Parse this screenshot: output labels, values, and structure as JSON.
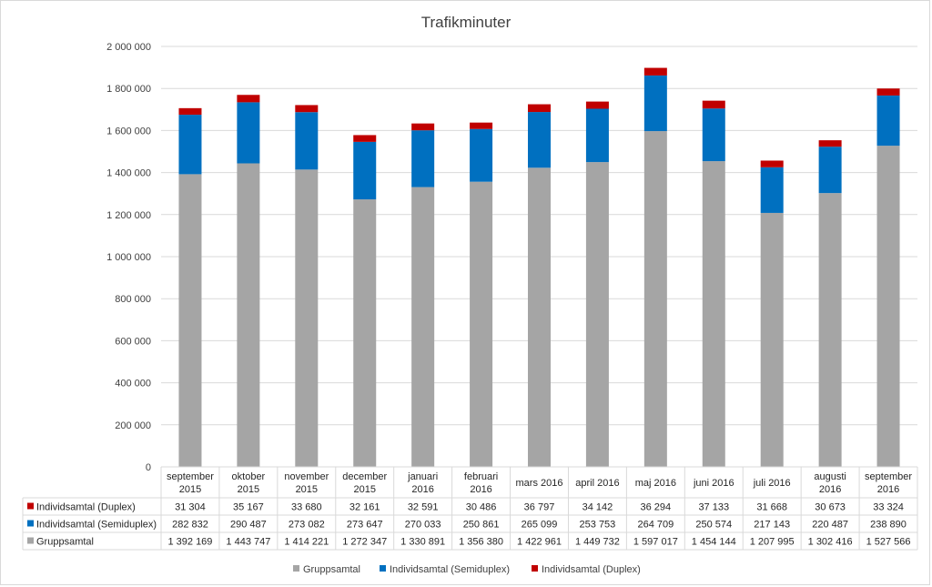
{
  "chart_data": {
    "type": "bar",
    "stacked": true,
    "title": "Trafikminuter",
    "categories": [
      [
        "september",
        "2015"
      ],
      [
        "oktober",
        "2015"
      ],
      [
        "november",
        "2015"
      ],
      [
        "december",
        "2015"
      ],
      [
        "januari",
        "2016"
      ],
      [
        "februari",
        "2016"
      ],
      [
        "mars 2016"
      ],
      [
        "april 2016"
      ],
      [
        "maj 2016"
      ],
      [
        "juni 2016"
      ],
      [
        "juli 2016"
      ],
      [
        "augusti",
        "2016"
      ],
      [
        "september",
        "2016"
      ]
    ],
    "series": [
      {
        "name": "Gruppsamtal",
        "color": "#a5a5a5",
        "values": [
          1392169,
          1443747,
          1414221,
          1272347,
          1330891,
          1356380,
          1422961,
          1449732,
          1597017,
          1454144,
          1207995,
          1302416,
          1527566
        ],
        "labels": [
          "1 392 169",
          "1 443 747",
          "1 414 221",
          "1 272 347",
          "1 330 891",
          "1 356 380",
          "1 422 961",
          "1 449 732",
          "1 597 017",
          "1 454 144",
          "1 207 995",
          "1 302 416",
          "1 527 566"
        ]
      },
      {
        "name": "Individsamtal (Semiduplex)",
        "color": "#0070c0",
        "values": [
          282832,
          290487,
          273082,
          273647,
          270033,
          250861,
          265099,
          253753,
          264709,
          250574,
          217143,
          220487,
          238890
        ],
        "labels": [
          "282 832",
          "290 487",
          "273 082",
          "273 647",
          "270 033",
          "250 861",
          "265 099",
          "253 753",
          "264 709",
          "250 574",
          "217 143",
          "220 487",
          "238 890"
        ]
      },
      {
        "name": "Individsamtal (Duplex)",
        "color": "#c00000",
        "values": [
          31304,
          35167,
          33680,
          32161,
          32591,
          30486,
          36797,
          34142,
          36294,
          37133,
          31668,
          30673,
          33324
        ],
        "labels": [
          "31 304",
          "35 167",
          "33 680",
          "32 161",
          "32 591",
          "30 486",
          "36 797",
          "34 142",
          "36 294",
          "37 133",
          "31 668",
          "30 673",
          "33 324"
        ]
      }
    ],
    "table_row_order": [
      2,
      1,
      0
    ],
    "ylim": [
      0,
      2000000
    ],
    "yticks": [
      0,
      200000,
      400000,
      600000,
      800000,
      1000000,
      1200000,
      1400000,
      1600000,
      1800000,
      2000000
    ],
    "ytick_labels": [
      "0",
      "200 000",
      "400 000",
      "600 000",
      "800 000",
      "1 000 000",
      "1 200 000",
      "1 400 000",
      "1 600 000",
      "1 800 000",
      "2 000 000"
    ],
    "grid": true,
    "legend_position": "bottom",
    "legend_order": [
      0,
      1,
      2
    ],
    "gridline_color": "#d9d9d9"
  }
}
